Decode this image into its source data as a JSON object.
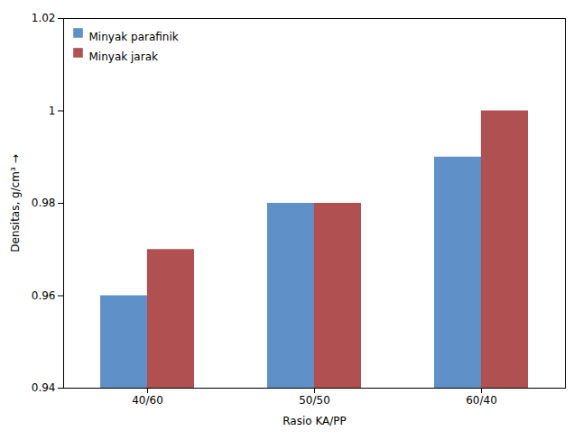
{
  "chart_data": {
    "type": "bar",
    "categories": [
      "40/60",
      "50/50",
      "60/40"
    ],
    "series": [
      {
        "name": "Minyak parafinik",
        "color": "#6090C8",
        "values": [
          0.96,
          0.98,
          0.99
        ]
      },
      {
        "name": "Minyak jarak",
        "color": "#B05050",
        "values": [
          0.97,
          0.98,
          1.0
        ]
      }
    ],
    "xlabel": "Rasio KA/PP",
    "ylabel": "Densitas, g/cm³",
    "ylim": [
      0.94,
      1.02
    ],
    "yticks": [
      0.94,
      0.96,
      0.98,
      1.0,
      1.02
    ],
    "legend": "upper left"
  }
}
